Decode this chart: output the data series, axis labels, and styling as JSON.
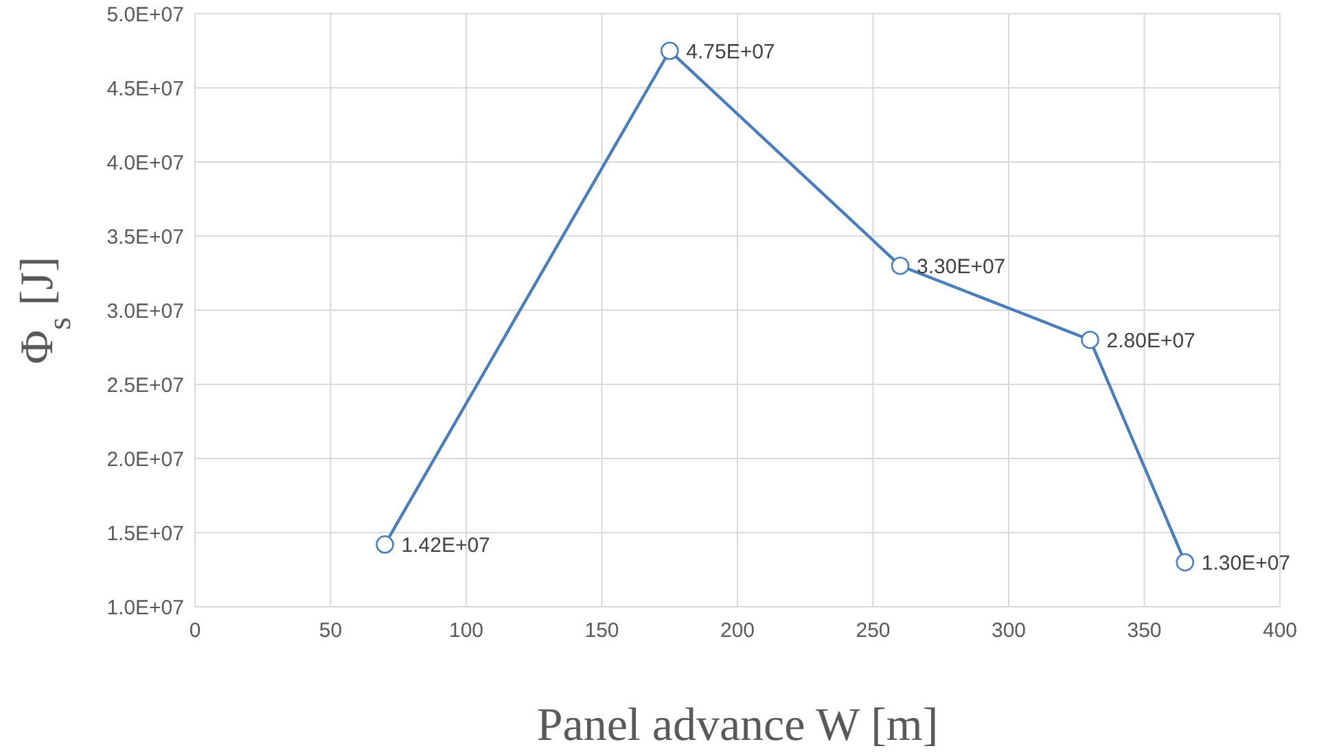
{
  "chart_data": {
    "type": "line",
    "xlabel": "Panel advance W [m]",
    "ylabel": "Φ$_{s}$ [J]",
    "x": [
      70,
      175,
      260,
      330,
      365
    ],
    "series": [
      {
        "color": "#4a7ebb",
        "values": [
          14200000,
          47500000,
          33000000,
          28000000,
          13000000
        ],
        "value_labels": [
          "1.42E+07",
          "4.75E+07",
          "3.30E+07",
          "2.80E+07",
          "1.30E+07"
        ]
      }
    ],
    "xlim": [
      0,
      400
    ],
    "xticks": [
      0,
      50,
      100,
      150,
      200,
      250,
      300,
      350,
      400
    ],
    "ylim": [
      10000000,
      50000000
    ],
    "yticks": [
      {
        "value": 10000000,
        "label": "1.0E+07"
      },
      {
        "value": 15000000,
        "label": "1.5E+07"
      },
      {
        "value": 20000000,
        "label": "2.0E+07"
      },
      {
        "value": 25000000,
        "label": "2.5E+07"
      },
      {
        "value": 30000000,
        "label": "3.0E+07"
      },
      {
        "value": 35000000,
        "label": "3.5E+07"
      },
      {
        "value": 40000000,
        "label": "4.0E+07"
      },
      {
        "value": 45000000,
        "label": "4.5E+07"
      },
      {
        "value": 50000000,
        "label": "5.0E+07"
      }
    ],
    "grid": true,
    "marker": "circle",
    "line_style": "solid"
  }
}
